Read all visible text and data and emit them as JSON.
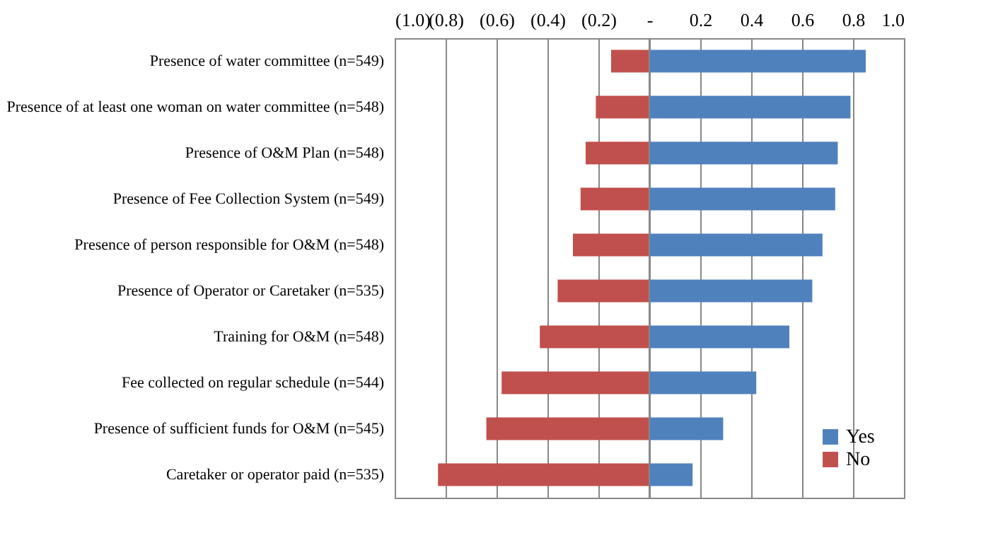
{
  "chart_data": {
    "type": "bar",
    "orientation": "horizontal",
    "stacked": true,
    "categories": [
      "Presence of water committee (n=549)",
      "Presence of at least one woman on water committee (n=548)",
      "Presence of O&M Plan (n=548)",
      "Presence of Fee Collection System (n=549)",
      "Presence of person responsible for O&M (n=548)",
      "Presence of Operator or Caretaker (n=535)",
      "Training for O&M (n=548)",
      "Fee collected on regular schedule (n=544)",
      "Presence of sufficient funds for O&M (n=545)",
      "Caretaker or operator paid (n=535)"
    ],
    "series": [
      {
        "name": "Yes",
        "color": "#4f81bd",
        "values": [
          0.85,
          0.79,
          0.74,
          0.73,
          0.68,
          0.64,
          0.55,
          0.42,
          0.29,
          0.17
        ]
      },
      {
        "name": "No",
        "color": "#c0504d",
        "values": [
          -0.15,
          -0.21,
          -0.25,
          -0.27,
          -0.3,
          -0.36,
          -0.43,
          -0.58,
          -0.64,
          -0.83
        ]
      }
    ],
    "xlim": [
      -1.0,
      1.0
    ],
    "xticks": [
      {
        "value": -1.0,
        "label": "(1.0)"
      },
      {
        "value": -0.8,
        "label": "(0.8)"
      },
      {
        "value": -0.6,
        "label": "(0.6)"
      },
      {
        "value": -0.4,
        "label": "(0.4)"
      },
      {
        "value": -0.2,
        "label": "(0.2)"
      },
      {
        "value": 0,
        "label": "-"
      },
      0.2,
      0.4,
      0.6,
      0.8,
      {
        "value": 1.0,
        "label": "1.0"
      }
    ],
    "grid": "x",
    "legend": "bottom right"
  }
}
